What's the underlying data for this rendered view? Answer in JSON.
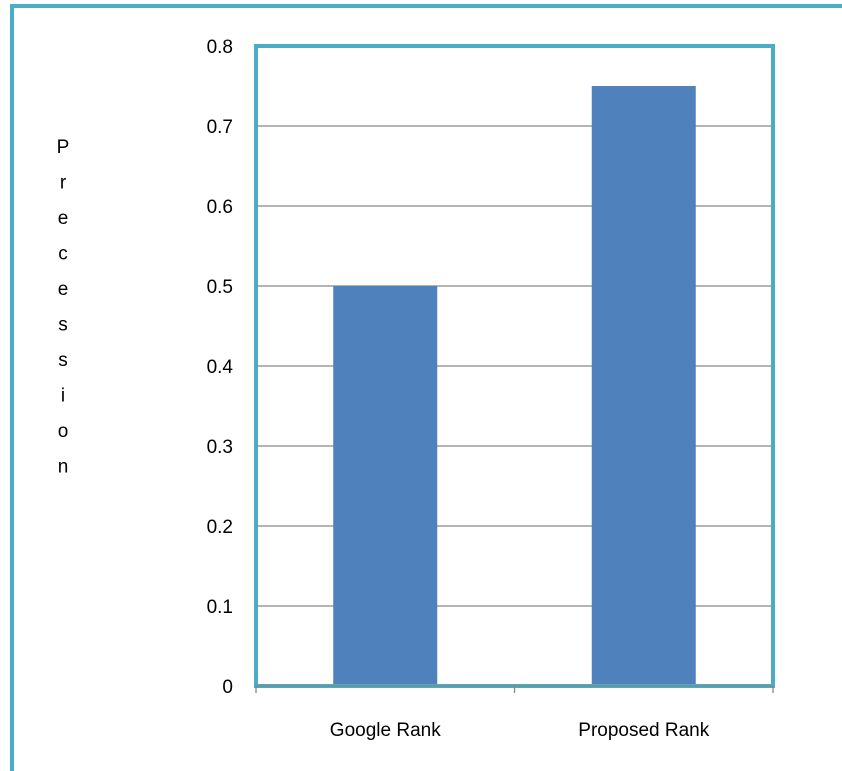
{
  "chart_data": {
    "type": "bar",
    "title": "",
    "xlabel": "",
    "ylabel": "Precession",
    "categories": [
      "Google Rank",
      "Proposed Rank"
    ],
    "series": [
      {
        "values": [
          0.5,
          0.75
        ]
      }
    ],
    "ylim": [
      0,
      0.8
    ],
    "yticks": [
      "0",
      "0.1",
      "0.2",
      "0.3",
      "0.4",
      "0.5",
      "0.6",
      "0.7",
      "0.8"
    ],
    "grid": true,
    "legend": "none"
  },
  "colors": {
    "bar": "#4F81BD",
    "plot_border": "#4BACC6",
    "frame_border": "#4BACC6",
    "gridline": "#868686",
    "axis": "#868686"
  }
}
